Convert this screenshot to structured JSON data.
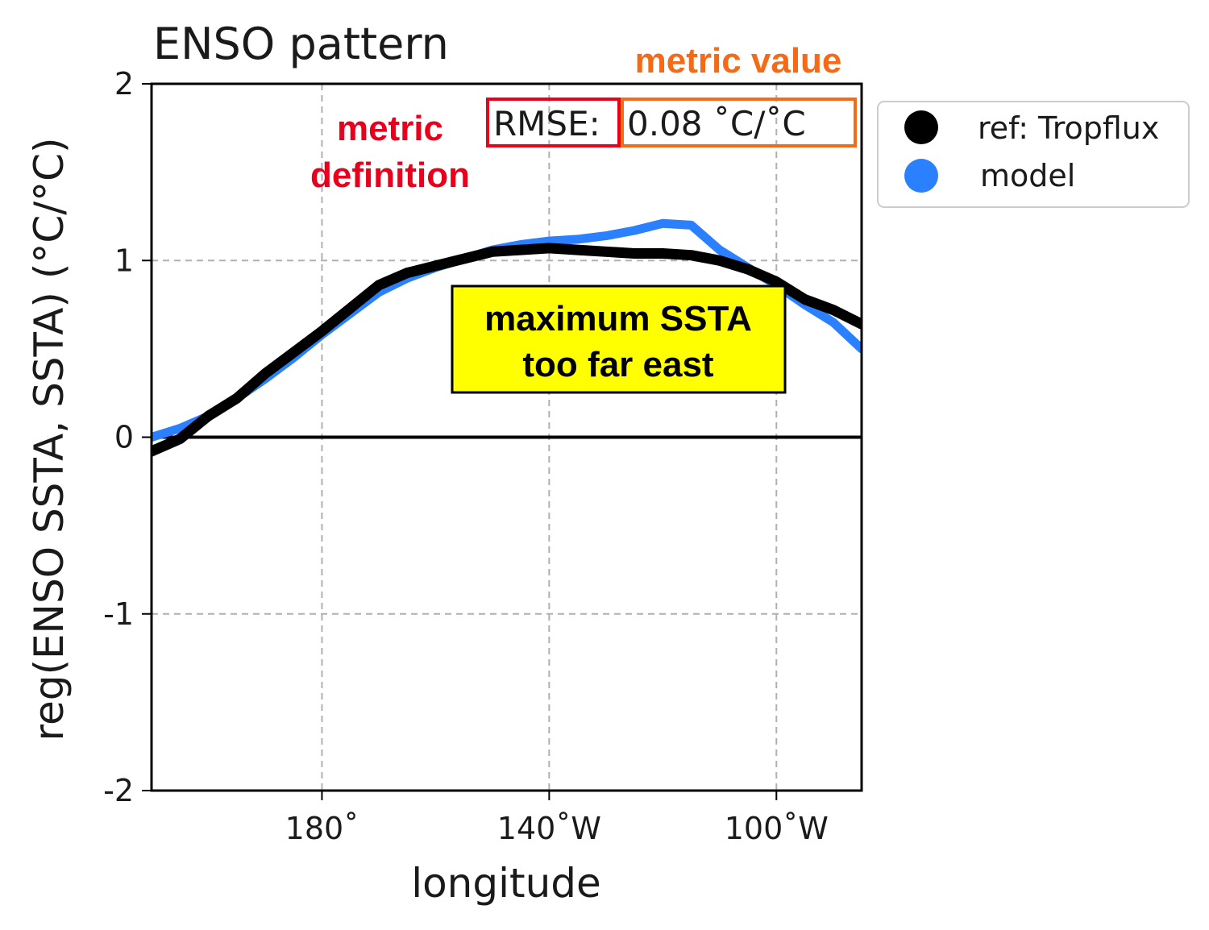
{
  "chart_data": {
    "type": "line",
    "title": "ENSO pattern",
    "xlabel": "longitude",
    "ylabel": "reg(ENSO SSTA, SSTA) (°C/°C)",
    "xlim": [
      150,
      275
    ],
    "ylim": [
      -2,
      2
    ],
    "x_ticks": [
      {
        "value": 180,
        "label": "180˚"
      },
      {
        "value": 220,
        "label": "140˚W"
      },
      {
        "value": 260,
        "label": "100˚W"
      }
    ],
    "y_ticks": [
      {
        "value": 2,
        "label": "2"
      },
      {
        "value": 1,
        "label": "1"
      },
      {
        "value": 0,
        "label": "0"
      },
      {
        "value": -1,
        "label": "-1"
      },
      {
        "value": -2,
        "label": "-2"
      }
    ],
    "grid": true,
    "zero_line": true,
    "legend_position": "outside-right",
    "series": [
      {
        "name": "ref: Tropflux",
        "color": "#000000",
        "x": [
          150,
          155,
          160,
          165,
          170,
          175,
          180,
          185,
          190,
          195,
          200,
          205,
          210,
          215,
          220,
          225,
          230,
          235,
          240,
          245,
          250,
          255,
          260,
          265,
          270,
          275
        ],
        "y": [
          -0.08,
          -0.01,
          0.12,
          0.22,
          0.36,
          0.48,
          0.6,
          0.73,
          0.86,
          0.93,
          0.97,
          1.01,
          1.05,
          1.06,
          1.07,
          1.06,
          1.05,
          1.04,
          1.04,
          1.03,
          1.0,
          0.95,
          0.88,
          0.78,
          0.72,
          0.64
        ]
      },
      {
        "name": "model",
        "color": "#2a80ff",
        "x": [
          150,
          155,
          160,
          165,
          170,
          175,
          180,
          185,
          190,
          195,
          200,
          205,
          210,
          215,
          220,
          225,
          230,
          235,
          240,
          245,
          250,
          255,
          260,
          265,
          270,
          275
        ],
        "y": [
          0.0,
          0.05,
          0.12,
          0.22,
          0.33,
          0.45,
          0.58,
          0.7,
          0.82,
          0.9,
          0.96,
          1.01,
          1.06,
          1.09,
          1.11,
          1.12,
          1.14,
          1.17,
          1.21,
          1.2,
          1.06,
          0.96,
          0.86,
          0.75,
          0.65,
          0.5
        ]
      }
    ],
    "rmse_label": "RMSE:",
    "rmse_value": "0.08 ˚C/˚C"
  },
  "annotations": {
    "metric_definition_line1": "metric",
    "metric_definition_line2": "definition",
    "metric_value": "metric value",
    "note_line1": "maximum SSTA",
    "note_line2": "too far east"
  },
  "colors": {
    "red": "#e8001c",
    "orange": "#f46a16",
    "yellow": "#ffff00"
  }
}
